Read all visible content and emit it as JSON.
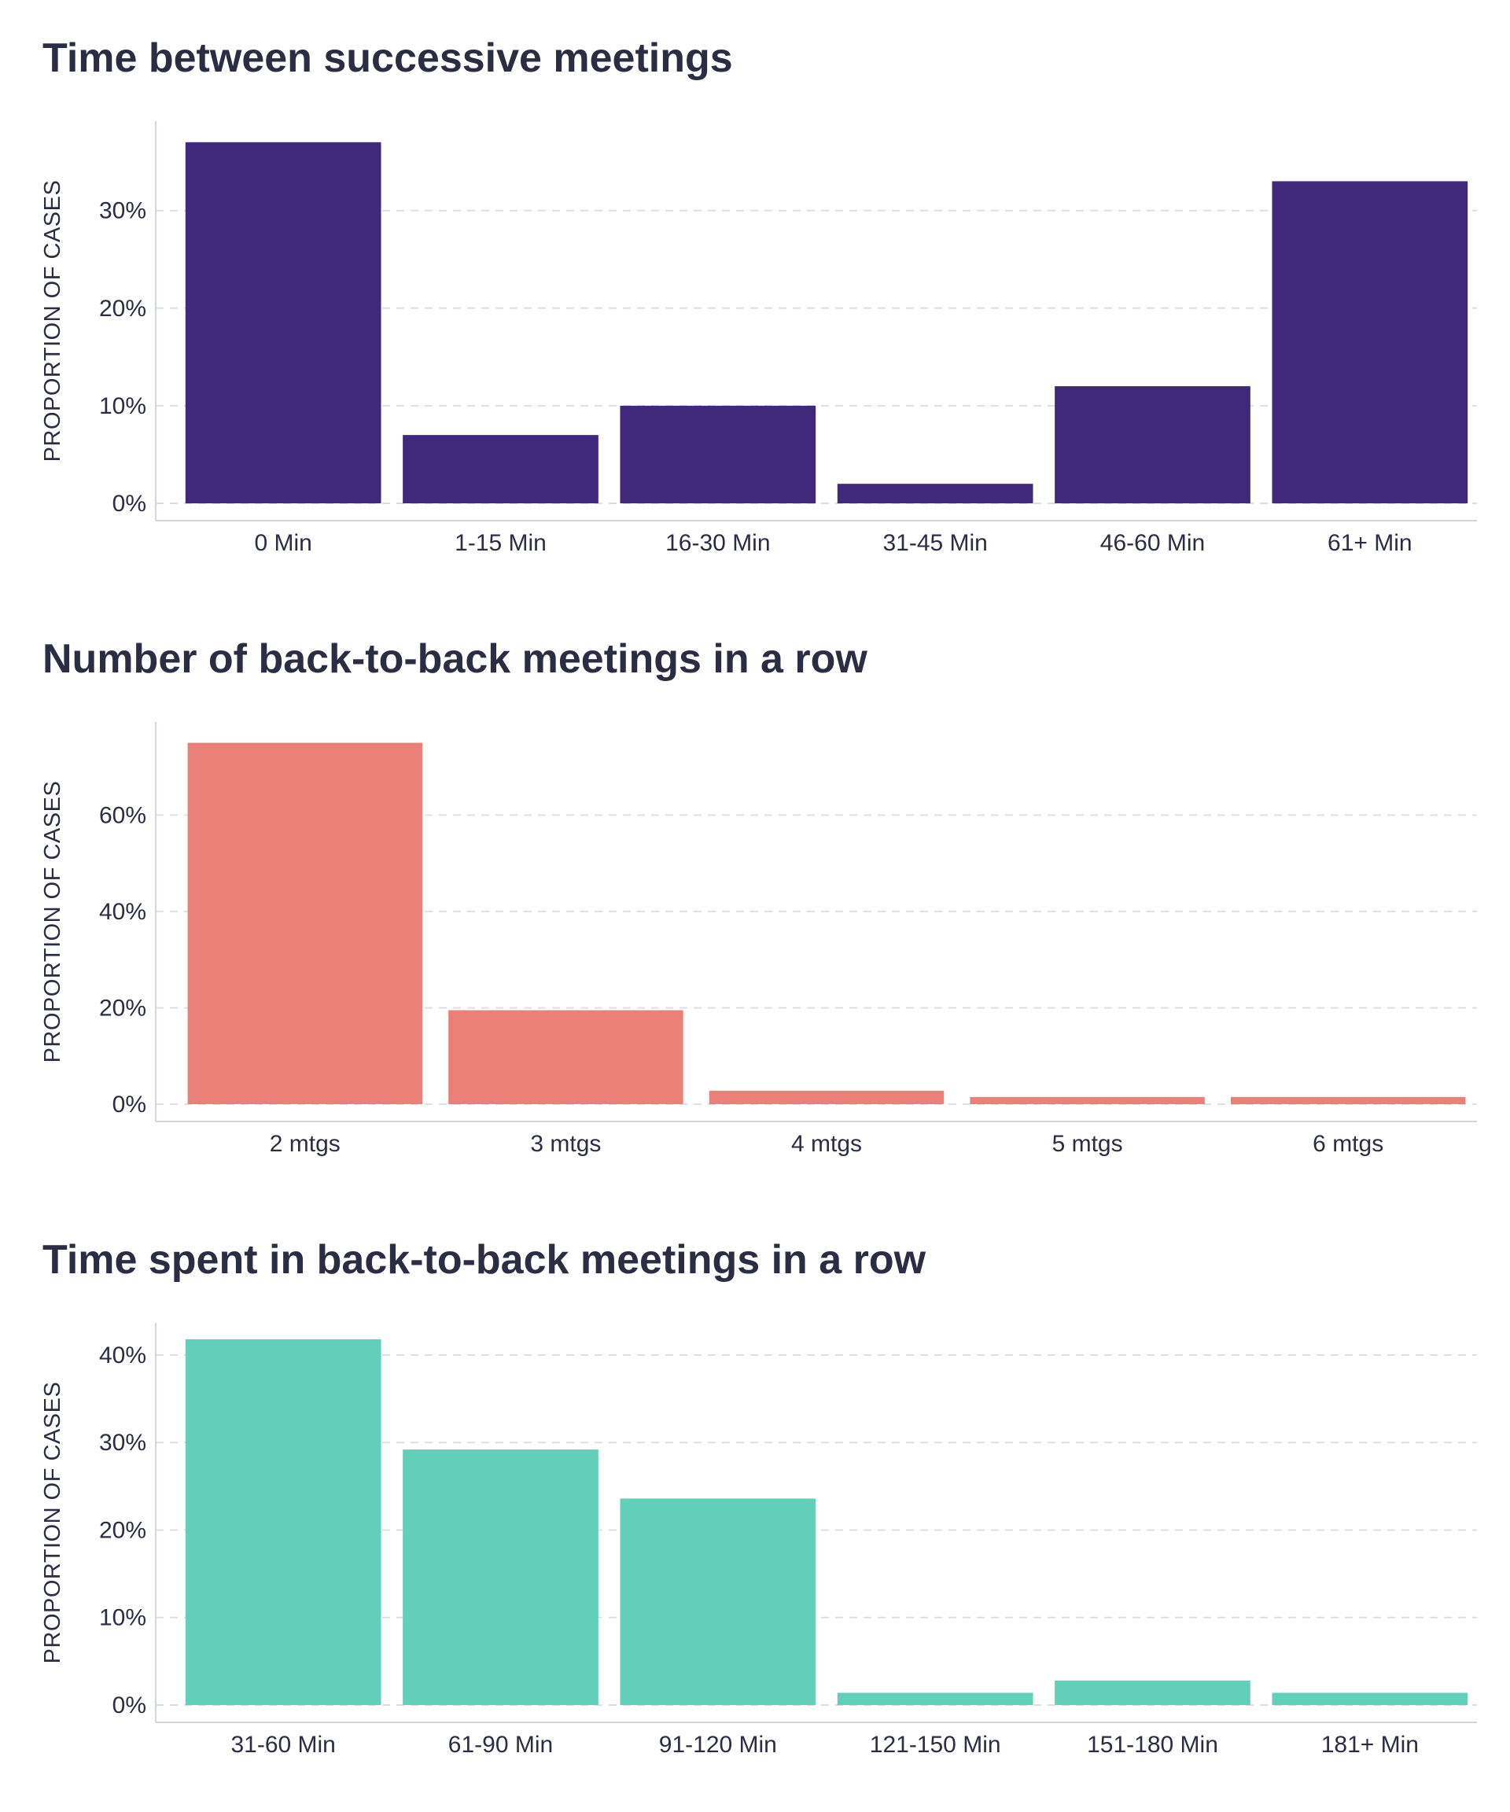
{
  "chart_data": [
    {
      "type": "bar",
      "title": "Time between successive meetings",
      "ylabel": "PROPORTION OF CASES",
      "xlabel": "",
      "categories": [
        "0 Min",
        "1-15 Min",
        "16-30 Min",
        "31-45 Min",
        "46-60 Min",
        "61+ Min"
      ],
      "values": [
        37,
        7,
        10,
        2,
        12,
        33
      ],
      "value_format": "percent",
      "yticks": [
        0,
        10,
        20,
        30
      ],
      "ylim": [
        0,
        39
      ],
      "grid": "horizontal-dashed",
      "color": "#40297b"
    },
    {
      "type": "bar",
      "title": "Number of back-to-back meetings in a row",
      "ylabel": "PROPORTION OF CASES",
      "xlabel": "",
      "categories": [
        "2 mtgs",
        "3 mtgs",
        "4 mtgs",
        "5 mtgs",
        "6 mtgs"
      ],
      "values": [
        75,
        19.5,
        2.8,
        1.5,
        1.5
      ],
      "value_format": "percent",
      "yticks": [
        0,
        20,
        40,
        60
      ],
      "ylim": [
        0,
        79
      ],
      "grid": "horizontal-dashed",
      "color": "#eb8078"
    },
    {
      "type": "bar",
      "title": "Time spent in back-to-back meetings in a row",
      "ylabel": "PROPORTION OF CASES",
      "xlabel": "",
      "categories": [
        "31-60 Min",
        "61-90 Min",
        "91-120 Min",
        "121-150 Min",
        "151-180 Min",
        "181+ Min"
      ],
      "values": [
        41.8,
        29.2,
        23.6,
        1.4,
        2.8,
        1.4
      ],
      "value_format": "percent",
      "yticks": [
        0,
        10,
        20,
        30,
        40
      ],
      "ylim": [
        0,
        43.5
      ],
      "grid": "horizontal-dashed",
      "color": "#62d0b9"
    }
  ]
}
